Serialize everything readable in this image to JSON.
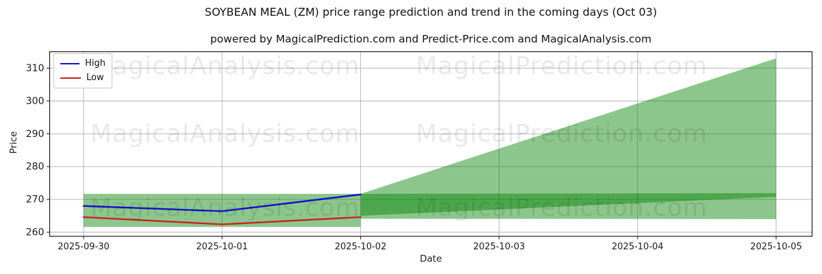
{
  "title": "SOYBEAN MEAL (ZM) price range prediction and trend in the coming days (Oct 03)",
  "subtitle": "powered by MagicalPrediction.com and Predict-Price.com and MagicalAnalysis.com",
  "watermark": {
    "left": "MagicalAnalysis.com",
    "right": "MagicalPrediction.com"
  },
  "legend": {
    "items": [
      {
        "label": "High",
        "color": "#1111cc"
      },
      {
        "label": "Low",
        "color": "#cc2020"
      }
    ]
  },
  "chart_data": {
    "type": "line",
    "title": "SOYBEAN MEAL (ZM) price range prediction and trend in the coming days (Oct 03)",
    "xlabel": "Date",
    "ylabel": "Price",
    "x_ticklabels": [
      "2025-09-30",
      "2025-10-01",
      "2025-10-02",
      "2025-10-03",
      "2025-10-04",
      "2025-10-05"
    ],
    "y_ticks": [
      260,
      270,
      280,
      290,
      300,
      310
    ],
    "ylim": [
      258.75,
      315.0
    ],
    "grid": true,
    "legend_position": "upper-left",
    "series": [
      {
        "name": "High",
        "color": "#1111cc",
        "x": [
          0,
          1,
          2
        ],
        "values": [
          268.0,
          266.4,
          271.5
        ]
      },
      {
        "name": "Low",
        "color": "#cc2020",
        "x": [
          0,
          1,
          2
        ],
        "values": [
          264.6,
          262.4,
          264.6
        ]
      }
    ],
    "bands": [
      {
        "name": "historical-range",
        "x": [
          2,
          0
        ],
        "upper": [
          271.7,
          271.7
        ],
        "lower": [
          261.6,
          261.6
        ]
      },
      {
        "name": "prediction-high-fan",
        "x": [
          2,
          5
        ],
        "upper": [
          271.7,
          313.0
        ],
        "lower": [
          265.0,
          270.8
        ]
      },
      {
        "name": "prediction-low-band",
        "x": [
          2,
          5
        ],
        "upper": [
          271.7,
          271.9
        ],
        "lower": [
          264.1,
          264.0
        ]
      }
    ],
    "band_color": "#008000",
    "band_opacity": 0.45
  }
}
